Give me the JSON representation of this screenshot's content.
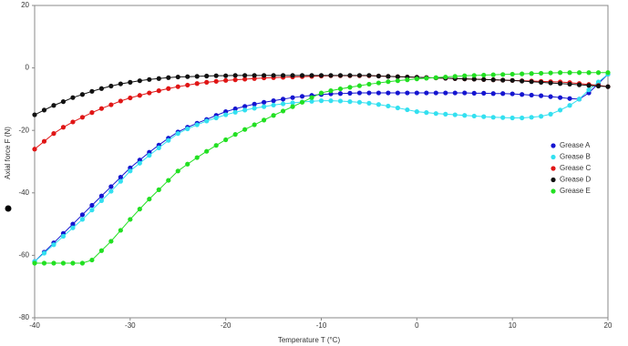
{
  "chart_data": {
    "type": "line",
    "xlabel": "Temperature T (°C)",
    "ylabel": "Axial force F (N)",
    "xlim": [
      -40,
      20
    ],
    "xticks": [
      -40,
      -30,
      -20,
      -10,
      0,
      10,
      20
    ],
    "ylim": [
      -80,
      20
    ],
    "yticks": [
      -80,
      -60,
      -40,
      -20,
      0,
      20
    ],
    "grid": false,
    "legend": "right",
    "x": [
      -40,
      -39,
      -38,
      -37,
      -36,
      -35,
      -34,
      -33,
      -32,
      -31,
      -30,
      -29,
      -28,
      -27,
      -26,
      -25,
      -24,
      -23,
      -22,
      -21,
      -20,
      -19,
      -18,
      -17,
      -16,
      -15,
      -14,
      -13,
      -12,
      -11,
      -10,
      -9,
      -8,
      -7,
      -6,
      -5,
      -4,
      -3,
      -2,
      -1,
      0,
      1,
      2,
      3,
      4,
      5,
      6,
      7,
      8,
      9,
      10,
      11,
      12,
      13,
      14,
      15,
      16,
      17,
      18,
      19,
      20
    ],
    "series": [
      {
        "name": "Grease A",
        "color": "#1515d0",
        "values": [
          -62,
          -59,
          -56,
          -53,
          -50,
          -47,
          -44,
          -41,
          -38,
          -35,
          -32,
          -29.5,
          -27,
          -24.7,
          -22.5,
          -20.5,
          -19,
          -17.7,
          -16.5,
          -15.2,
          -14,
          -13.1,
          -12.3,
          -11.6,
          -11,
          -10.5,
          -10,
          -9.5,
          -9.1,
          -8.8,
          -8.5,
          -8.3,
          -8.2,
          -8.1,
          -8,
          -8,
          -8,
          -8,
          -8,
          -8,
          -8,
          -8,
          -8,
          -8,
          -8,
          -8,
          -8.1,
          -8.1,
          -8.2,
          -8.2,
          -8.3,
          -8.5,
          -8.7,
          -8.9,
          -9.2,
          -9.5,
          -9.8,
          -10,
          -8,
          -5,
          -2
        ]
      },
      {
        "name": "Grease B",
        "color": "#33e0f0",
        "values": [
          -62,
          -59.3,
          -56.6,
          -53.9,
          -51.2,
          -48.5,
          -45.5,
          -42.5,
          -39.5,
          -36.3,
          -33,
          -30.5,
          -28,
          -25.6,
          -23.2,
          -21,
          -19.5,
          -18.2,
          -17,
          -16,
          -15,
          -14.2,
          -13.5,
          -12.9,
          -12.4,
          -11.9,
          -11.5,
          -11.2,
          -10.9,
          -10.7,
          -10.5,
          -10.5,
          -10.6,
          -10.8,
          -11,
          -11.3,
          -11.7,
          -12.2,
          -12.8,
          -13.4,
          -14,
          -14.3,
          -14.6,
          -14.8,
          -15,
          -15.2,
          -15.4,
          -15.6,
          -15.8,
          -15.9,
          -16,
          -16,
          -15.8,
          -15.5,
          -14.8,
          -13.5,
          -12,
          -10,
          -7,
          -4.5,
          -2
        ]
      },
      {
        "name": "Grease C",
        "color": "#e01515",
        "values": [
          -26,
          -23.5,
          -21,
          -19,
          -17.3,
          -15.8,
          -14.3,
          -13,
          -11.8,
          -10.6,
          -9.6,
          -8.8,
          -8,
          -7.3,
          -6.6,
          -6,
          -5.5,
          -5,
          -4.6,
          -4.3,
          -4,
          -3.8,
          -3.6,
          -3.4,
          -3.2,
          -3.1,
          -3,
          -2.9,
          -2.8,
          -2.7,
          -2.6,
          -2.5,
          -2.5,
          -2.5,
          -2.5,
          -2.5,
          -2.6,
          -2.7,
          -2.8,
          -2.9,
          -3,
          -3.1,
          -3.2,
          -3.3,
          -3.4,
          -3.5,
          -3.6,
          -3.7,
          -3.8,
          -3.9,
          -4,
          -4.1,
          -4.2,
          -4.3,
          -4.4,
          -4.5,
          -4.7,
          -5,
          -5.3,
          -5.6,
          -6
        ]
      },
      {
        "name": "Grease D",
        "color": "#111111",
        "values": [
          -15,
          -13.5,
          -12,
          -10.8,
          -9.5,
          -8.5,
          -7.5,
          -6.6,
          -5.8,
          -5.1,
          -4.6,
          -4.1,
          -3.7,
          -3.4,
          -3.1,
          -2.9,
          -2.8,
          -2.7,
          -2.6,
          -2.5,
          -2.5,
          -2.4,
          -2.4,
          -2.4,
          -2.4,
          -2.4,
          -2.4,
          -2.4,
          -2.4,
          -2.4,
          -2.4,
          -2.4,
          -2.4,
          -2.4,
          -2.4,
          -2.4,
          -2.6,
          -2.7,
          -2.8,
          -2.9,
          -3,
          -3.1,
          -3.2,
          -3.3,
          -3.4,
          -3.5,
          -3.6,
          -3.7,
          -3.8,
          -3.9,
          -4,
          -4.2,
          -4.4,
          -4.6,
          -4.8,
          -5,
          -5.2,
          -5.4,
          -5.6,
          -5.8,
          -6
        ]
      },
      {
        "name": "Grease E",
        "color": "#22e022",
        "values": [
          -62.5,
          -62.5,
          -62.5,
          -62.5,
          -62.5,
          -62.5,
          -61.5,
          -58.5,
          -55.5,
          -52,
          -48.5,
          -45.2,
          -42,
          -39,
          -36,
          -33,
          -30.8,
          -28.7,
          -26.7,
          -24.8,
          -23,
          -21.3,
          -19.7,
          -18.2,
          -16.7,
          -15.2,
          -13.8,
          -12.4,
          -11,
          -9.5,
          -8,
          -7.3,
          -6.7,
          -6.2,
          -5.7,
          -5.2,
          -4.8,
          -4.4,
          -4.1,
          -3.8,
          -3.5,
          -3.3,
          -3.1,
          -2.9,
          -2.7,
          -2.5,
          -2.4,
          -2.3,
          -2.2,
          -2.1,
          -2,
          -1.9,
          -1.8,
          -1.7,
          -1.6,
          -1.5,
          -1.5,
          -1.5,
          -1.5,
          -1.5,
          -1.5
        ]
      }
    ]
  }
}
